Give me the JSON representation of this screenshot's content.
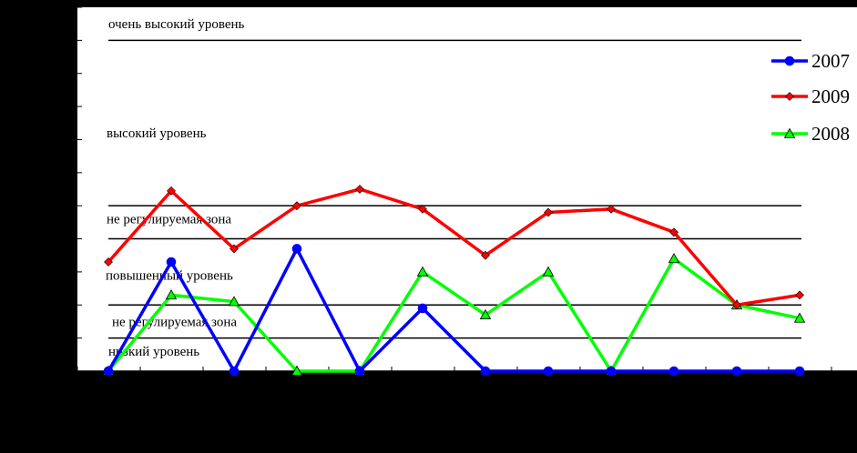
{
  "chart_data": {
    "type": "line",
    "x": [
      1,
      2,
      3,
      4,
      5,
      6,
      7,
      8,
      9,
      10,
      11,
      12
    ],
    "ylim": [
      0,
      11
    ],
    "zone_lines": [
      1,
      2,
      4,
      5,
      10
    ],
    "zones": [
      {
        "label": "очень высокий уровень",
        "y": 10.5
      },
      {
        "label": "высокий уровень",
        "y": 7.2
      },
      {
        "label": "не регулируемая зона",
        "y": 4.6
      },
      {
        "label": "повышенный уровень",
        "y": 2.9
      },
      {
        "label": "не регулируемая зона",
        "y": 1.5
      },
      {
        "label": "низкий уровень",
        "y": 0.6
      }
    ],
    "series": [
      {
        "name": "2007",
        "color": "#0000ff",
        "marker": "circle",
        "values": [
          0,
          3.3,
          0,
          3.7,
          0,
          1.9,
          0,
          0,
          0,
          0,
          0,
          0
        ]
      },
      {
        "name": "2009",
        "color": "#ff0000",
        "marker": "diamond",
        "values": [
          3.3,
          5.45,
          3.7,
          5.0,
          5.5,
          4.9,
          3.5,
          4.8,
          4.9,
          4.2,
          2.0,
          2.3
        ]
      },
      {
        "name": "2008",
        "color": "#00ff00",
        "marker": "triangle",
        "values": [
          0,
          2.3,
          2.1,
          0,
          0,
          3.0,
          1.7,
          3.0,
          0,
          3.4,
          2.0,
          1.6
        ]
      }
    ],
    "legend_order": [
      0,
      1,
      2
    ],
    "legend_position": "top-right",
    "grid": false
  }
}
